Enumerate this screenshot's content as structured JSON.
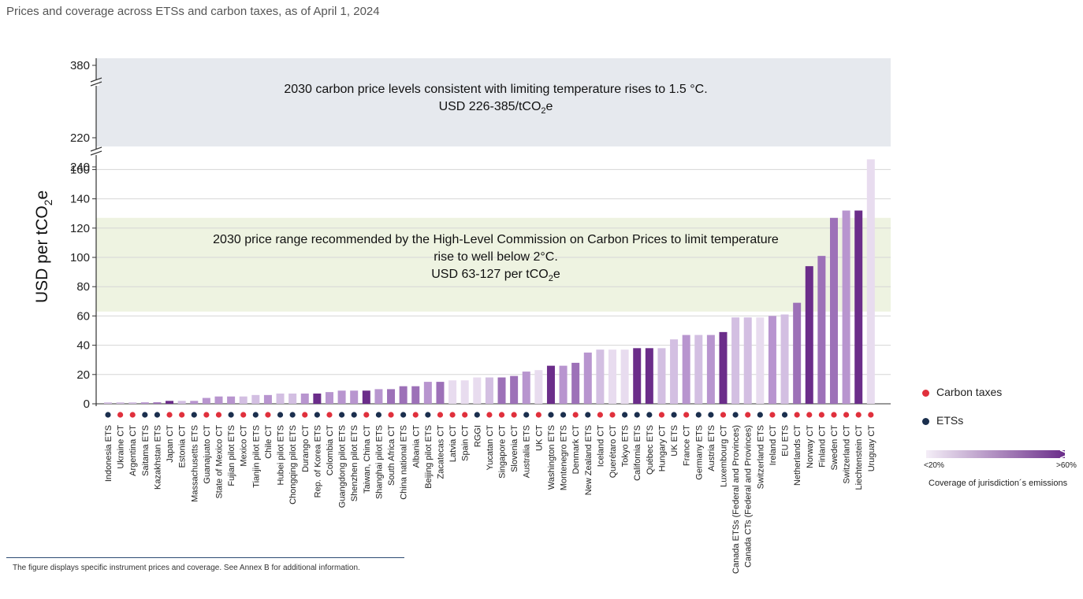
{
  "header": {
    "title": "Prices and coverage across ETSs and carbon taxes, as of April 1, 2024"
  },
  "footer": {
    "note": "The figure displays specific instrument prices and coverage. See Annex B for additional information."
  },
  "legend": {
    "carbon_taxes": "Carbon taxes",
    "ets": "ETSs",
    "ramp_low": "<20%",
    "ramp_high": ">60%",
    "ramp_caption": "Coverage of jurisdiction´s emissions"
  },
  "colors": {
    "carbon_tax_dot": "#e0303c",
    "ets_dot": "#1b2f4e",
    "upper_band": "#e6e9ee",
    "lower_band": "#eef3e1",
    "coverage_ramp": [
      "#e8dcef",
      "#d3bfe2",
      "#b895cf",
      "#9d71b8",
      "#6b2d8a"
    ]
  },
  "chart_data": {
    "type": "bar",
    "ylabel": "USD per tCO2e",
    "yticks_lower": [
      0,
      20,
      40,
      60,
      80,
      100,
      120,
      140,
      160
    ],
    "yticks_upper": [
      220,
      240,
      380
    ],
    "axis_break": true,
    "bands": [
      {
        "name": "upper",
        "range": [
          226,
          385
        ],
        "lines": [
          "2030 carbon price levels consistent with limiting temperature rises to 1.5 °C.",
          "USD 226-385/tCO2e"
        ]
      },
      {
        "name": "lower",
        "range": [
          63,
          127
        ],
        "lines": [
          "2030 price range recommended by the High-Level Commission on Carbon Prices to limit temperature",
          "rise to well below 2°C.",
          "USD 63-127 per tCO2e"
        ]
      }
    ],
    "categories": [
      "Indonesia ETS",
      "Ukraine CT",
      "Argentina CT",
      "Saitama ETS",
      "Kazakhstan ETS",
      "Japan CT",
      "Estonia CT",
      "Massachusetts ETS",
      "Guanajuato CT",
      "State of Mexico CT",
      "Fujian pilot ETS",
      "Mexico CT",
      "Tianjin pilot ETS",
      "Chile CT",
      "Hubei pilot ETS",
      "Chongqing pilot ETS",
      "Durango CT",
      "Rep. of Korea ETS",
      "Colombia CT",
      "Guangdong pilot ETS",
      "Shenzhen pilot ETS",
      "Taiwan, China CT",
      "Shanghai pilot ETS",
      "South Africa CT",
      "China national ETS",
      "Albania CT",
      "Beijing pilot ETS",
      "Zacatecas CT",
      "Latvia CT",
      "Spain CT",
      "RGGI",
      "Yucatan CT",
      "Singapore CT",
      "Slovenia CT",
      "Australia ETS",
      "UK CT",
      "Washington ETS",
      "Montenegro ETS",
      "Denmark CT",
      "New Zealand ETS",
      "Iceland CT",
      "Querétaro CT",
      "Tokyo ETS",
      "California ETS",
      "Québec ETS",
      "Hungary CT",
      "UK ETS",
      "France CT",
      "Germany ETS",
      "Austria ETS",
      "Luxembourg CT",
      "Canada ETSs (Federal and Provinces)",
      "Canada CTs (Federal and Provinces)",
      "Switzerland ETS",
      "Ireland CT",
      "EU ETS",
      "Netherlands CT",
      "Norway CT",
      "Finland CT",
      "Sweden CT",
      "Switzerland CT",
      "Liechtenstein CT",
      "Uruguay CT"
    ],
    "values": [
      1,
      1,
      1,
      1,
      1,
      2,
      2,
      2,
      4,
      5,
      5,
      5,
      6,
      6,
      7,
      7,
      7,
      7,
      8,
      9,
      9,
      9,
      10,
      10,
      12,
      12,
      15,
      15,
      16,
      16,
      18,
      18,
      18,
      19,
      22,
      23,
      26,
      26,
      28,
      35,
      37,
      37,
      37,
      38,
      38,
      38,
      44,
      47,
      47,
      47,
      49,
      59,
      59,
      59,
      60,
      61,
      69,
      94,
      101,
      127,
      132,
      132,
      167
    ],
    "instrument_type": [
      "ETS",
      "CT",
      "CT",
      "ETS",
      "ETS",
      "CT",
      "CT",
      "ETS",
      "CT",
      "CT",
      "ETS",
      "CT",
      "ETS",
      "CT",
      "ETS",
      "ETS",
      "CT",
      "ETS",
      "CT",
      "ETS",
      "ETS",
      "CT",
      "ETS",
      "CT",
      "ETS",
      "CT",
      "ETS",
      "CT",
      "CT",
      "CT",
      "ETS",
      "CT",
      "CT",
      "CT",
      "ETS",
      "CT",
      "ETS",
      "ETS",
      "CT",
      "ETS",
      "CT",
      "CT",
      "ETS",
      "ETS",
      "ETS",
      "CT",
      "ETS",
      "CT",
      "ETS",
      "ETS",
      "CT",
      "ETS",
      "CT",
      "ETS",
      "CT",
      "ETS",
      "CT",
      "CT",
      "CT",
      "CT",
      "CT",
      "CT",
      "CT"
    ],
    "coverage_level": [
      2,
      2,
      2,
      3,
      4,
      5,
      2,
      3,
      3,
      3,
      3,
      2,
      2,
      3,
      2,
      2,
      3,
      5,
      3,
      3,
      3,
      5,
      3,
      4,
      4,
      4,
      3,
      4,
      1,
      1,
      1,
      2,
      4,
      4,
      3,
      1,
      5,
      3,
      4,
      3,
      2,
      1,
      1,
      5,
      5,
      2,
      2,
      3,
      2,
      3,
      5,
      2,
      2,
      1,
      3,
      2,
      4,
      5,
      4,
      4,
      3,
      5,
      1
    ]
  }
}
